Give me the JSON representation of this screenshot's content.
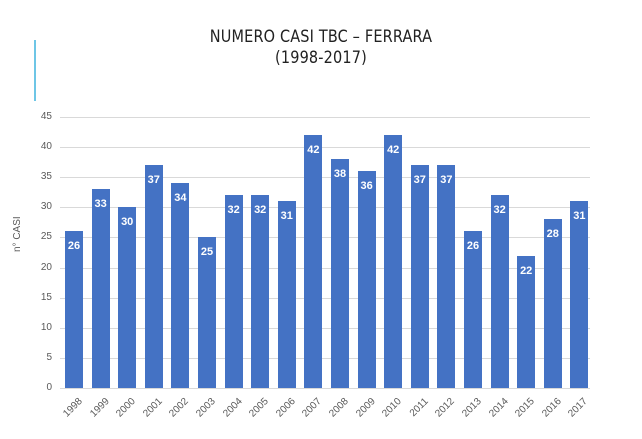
{
  "header": {
    "title_line1": "NUMERO CASI TBC – FERRARA",
    "title_line2": "(1998-2017)"
  },
  "colors": {
    "bar": "#4472c4",
    "accent_line": "#6ec6e6",
    "grid": "#d9d9d9"
  },
  "chart_data": {
    "type": "bar",
    "title": "NUMERO CASI TBC – FERRARA (1998-2017)",
    "xlabel": "",
    "ylabel": "n° CASI",
    "categories": [
      "1998",
      "1999",
      "2000",
      "2001",
      "2002",
      "2003",
      "2004",
      "2005",
      "2006",
      "2007",
      "2008",
      "2009",
      "2010",
      "2011",
      "2012",
      "2013",
      "2014",
      "2015",
      "2016",
      "2017"
    ],
    "values": [
      26,
      33,
      30,
      37,
      34,
      25,
      32,
      32,
      31,
      42,
      38,
      36,
      42,
      37,
      37,
      26,
      32,
      22,
      28,
      31
    ],
    "ylim": [
      0,
      45
    ],
    "yticks": [
      0,
      5,
      10,
      15,
      20,
      25,
      30,
      35,
      40,
      45
    ],
    "grid": true,
    "legend": null,
    "data_labels": true
  }
}
